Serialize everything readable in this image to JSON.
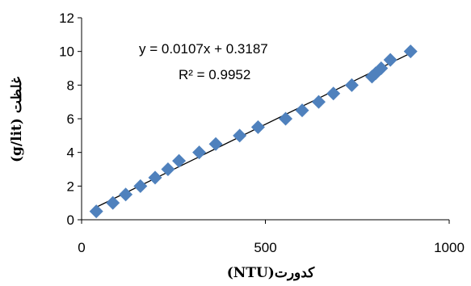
{
  "chart_data": {
    "type": "scatter",
    "xlabel": "کدورت(NTU)",
    "ylabel": "غلظت (g/lit)",
    "xlim": [
      0,
      1000
    ],
    "ylim": [
      0,
      12
    ],
    "x_ticks": [
      "0",
      "500",
      "1000"
    ],
    "y_ticks": [
      "0",
      "2",
      "4",
      "6",
      "8",
      "10",
      "12"
    ],
    "x_tick_values": [
      0,
      500,
      1000
    ],
    "y_tick_values": [
      0,
      2,
      4,
      6,
      8,
      10,
      12
    ],
    "grid": false,
    "marker": "diamond",
    "marker_color": "#4f81bd",
    "series": [
      {
        "x": [
          40,
          85,
          120,
          160,
          200,
          235,
          265,
          320,
          365,
          430,
          480,
          555,
          600,
          645,
          685,
          735,
          790,
          800,
          815,
          840,
          895
        ],
        "y": [
          0.5,
          1.0,
          1.5,
          2.0,
          2.5,
          3.0,
          3.5,
          4.0,
          4.5,
          5.0,
          5.5,
          6.0,
          6.5,
          7.0,
          7.5,
          8.0,
          8.5,
          8.7,
          9.0,
          9.5,
          10.0
        ]
      }
    ],
    "trendline": {
      "slope": 0.0107,
      "intercept": 0.3187,
      "x_range": [
        40,
        895
      ],
      "equation": "y = 0.0107x + 0.3187",
      "r_squared": "R² = 0.9952"
    }
  }
}
